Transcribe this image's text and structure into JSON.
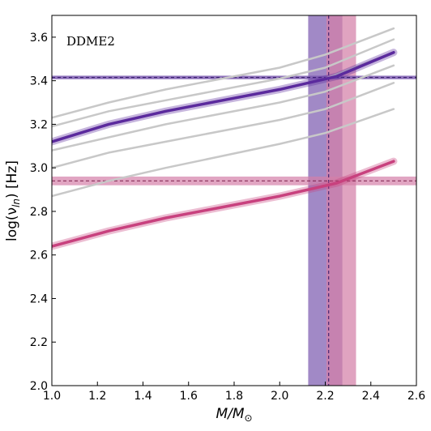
{
  "chart_data": {
    "type": "line",
    "panel_label": "DDME2",
    "xlabel_main": "M/M",
    "xlabel_sub": "⊙",
    "ylabel_main": "log(ν",
    "ylabel_sub": "ln",
    "ylabel_tail": ") [Hz]",
    "xlim": [
      1.0,
      2.6
    ],
    "ylim": [
      2.0,
      3.7
    ],
    "x_ticks": [
      "1.0",
      "1.2",
      "1.4",
      "1.6",
      "1.8",
      "2.0",
      "2.2",
      "2.4",
      "2.6"
    ],
    "y_ticks": [
      "2.0",
      "2.2",
      "2.4",
      "2.6",
      "2.8",
      "3.0",
      "3.2",
      "3.4",
      "3.6"
    ],
    "grid": false,
    "colors": {
      "purple": "#5b2a9d",
      "purple_band": "#7d5bb0",
      "pink": "#c8417e",
      "pink_band": "#d47fa8",
      "gray": "#c8c8c8"
    },
    "series": [
      {
        "role": "gray",
        "x": [
          1.0,
          1.25,
          1.5,
          2.0,
          2.2,
          2.5
        ],
        "y": [
          3.23,
          3.3,
          3.36,
          3.46,
          3.52,
          3.64
        ]
      },
      {
        "role": "gray",
        "x": [
          1.0,
          1.25,
          1.5,
          2.0,
          2.2,
          2.5
        ],
        "y": [
          3.19,
          3.26,
          3.31,
          3.41,
          3.46,
          3.59
        ]
      },
      {
        "role": "gray",
        "x": [
          1.0,
          1.25,
          1.5,
          2.0,
          2.2,
          2.5
        ],
        "y": [
          3.12,
          3.2,
          3.26,
          3.36,
          3.41,
          3.53
        ]
      },
      {
        "role": "gray",
        "x": [
          1.0,
          1.25,
          1.5,
          2.0,
          2.2,
          2.5
        ],
        "y": [
          3.08,
          3.14,
          3.2,
          3.3,
          3.35,
          3.47
        ]
      },
      {
        "role": "gray",
        "x": [
          1.0,
          1.25,
          1.5,
          2.0,
          2.2,
          2.5
        ],
        "y": [
          3.0,
          3.07,
          3.12,
          3.22,
          3.27,
          3.39
        ]
      },
      {
        "role": "gray",
        "x": [
          1.0,
          1.25,
          1.5,
          2.0,
          2.2,
          2.5
        ],
        "y": [
          2.87,
          2.94,
          3.0,
          3.11,
          3.16,
          3.27
        ]
      },
      {
        "role": "purple",
        "x": [
          1.0,
          1.25,
          1.5,
          1.75,
          2.0,
          2.25,
          2.5
        ],
        "y": [
          3.12,
          3.2,
          3.26,
          3.31,
          3.36,
          3.42,
          3.53
        ]
      },
      {
        "role": "pink",
        "x": [
          1.0,
          1.25,
          1.5,
          1.75,
          2.0,
          2.25,
          2.5
        ],
        "y": [
          2.64,
          2.71,
          2.77,
          2.82,
          2.87,
          2.93,
          3.03
        ]
      }
    ],
    "vertical_bands": [
      {
        "role": "purple_band",
        "x_range": [
          2.125,
          2.275
        ]
      },
      {
        "role": "pink_band",
        "x_range": [
          2.205,
          2.335
        ]
      }
    ],
    "vertical_line": {
      "x": 2.215
    },
    "horizontal_lines": [
      {
        "role": "purple",
        "y": 3.415,
        "half_width": 0.008
      },
      {
        "role": "pink",
        "y": 2.94,
        "half_width": 0.02
      }
    ]
  }
}
